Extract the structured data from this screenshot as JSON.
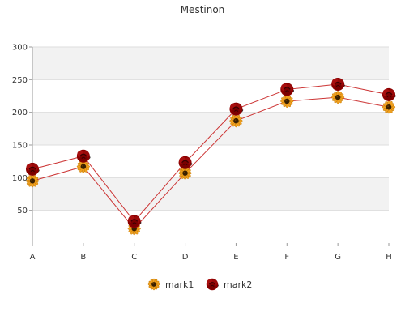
{
  "chart_data": {
    "type": "line",
    "title": "Mestinon",
    "xlabel": "",
    "ylabel": "",
    "categories": [
      "A",
      "B",
      "C",
      "D",
      "E",
      "F",
      "G",
      "H"
    ],
    "ylim": [
      0,
      300
    ],
    "yticks": [
      50,
      100,
      150,
      200,
      250,
      300
    ],
    "grid": true,
    "legend_position": "bottom",
    "series": [
      {
        "name": "mark1",
        "values": [
          95,
          117,
          22,
          107,
          187,
          217,
          223,
          208
        ],
        "marker": "sunflower-icon"
      },
      {
        "name": "mark2",
        "values": [
          113,
          133,
          33,
          123,
          205,
          235,
          243,
          227
        ],
        "marker": "rose-icon"
      }
    ],
    "colors": {
      "line": "#cc3333",
      "band": "#f2f2f2",
      "grid": "#dddddd",
      "axis": "#999999",
      "petal": "#f0a020",
      "seed": "#3a2000",
      "rose": "#8b0000"
    }
  }
}
